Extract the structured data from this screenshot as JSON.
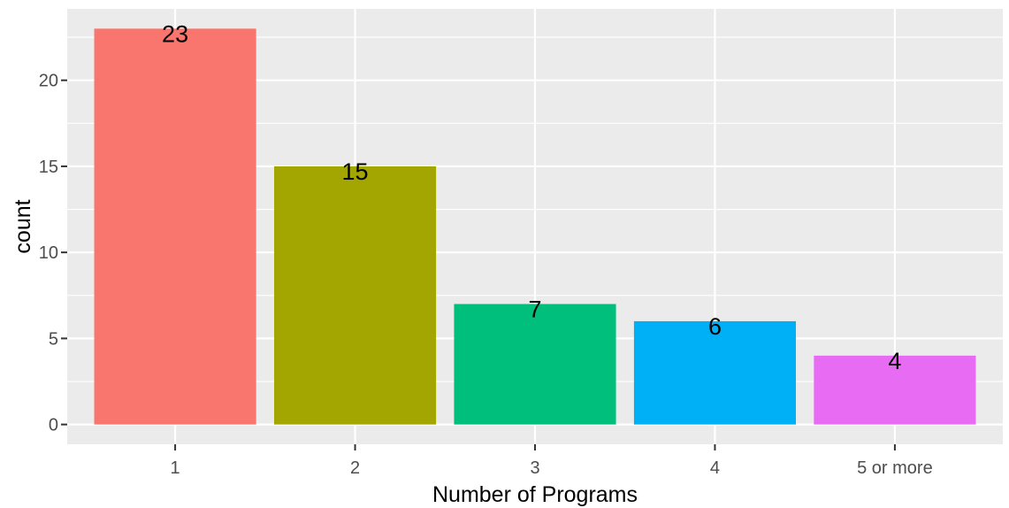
{
  "chart_data": {
    "type": "bar",
    "title": "",
    "xlabel": "Number of Programs",
    "ylabel": "count",
    "categories": [
      "1",
      "2",
      "3",
      "4",
      "5 or more"
    ],
    "values": [
      23,
      15,
      7,
      6,
      4
    ],
    "data_labels": [
      "23",
      "15",
      "7",
      "6",
      "4"
    ],
    "colors": [
      "#F8766D",
      "#A3A500",
      "#00BF7D",
      "#00B0F6",
      "#E76BF3"
    ],
    "yticks": [
      0,
      5,
      10,
      15,
      20
    ],
    "ytick_labels": [
      "0",
      "5",
      "10",
      "15",
      "20"
    ],
    "ylim": [
      -1.15,
      24.15
    ],
    "grid": true,
    "legend": "none",
    "panel_background": "#EBEBEB",
    "grid_color": "#FFFFFF",
    "text_color": "#4D4D4D",
    "label_color": "#000000"
  }
}
